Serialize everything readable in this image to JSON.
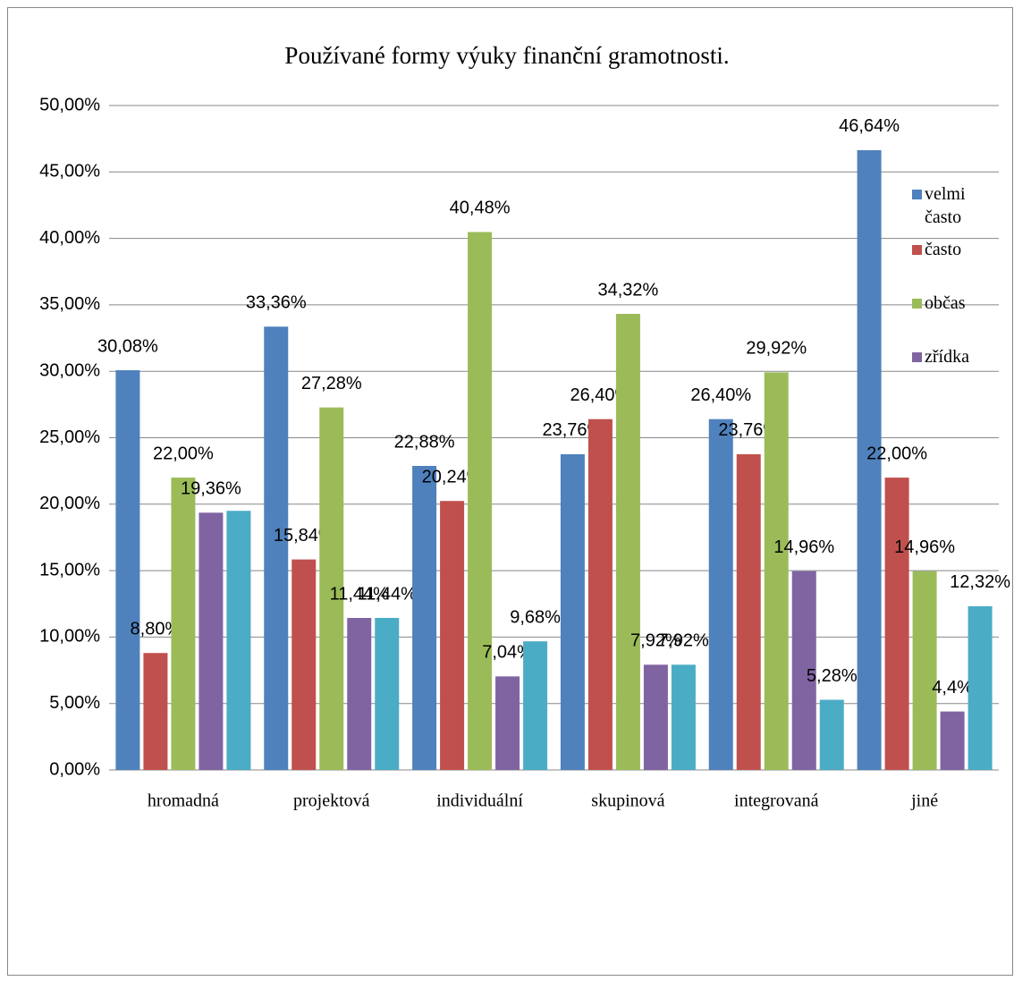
{
  "chart_data": {
    "type": "bar",
    "title": "Používané formy výuky finanční gramotnosti.",
    "categories": [
      "hromadná",
      "projektová",
      "individuální",
      "skupinová",
      "integrovaná",
      "jiné"
    ],
    "series": [
      {
        "name": "velmi často",
        "color": "#4f81bd",
        "values": [
          30.08,
          33.36,
          22.88,
          23.76,
          26.4,
          46.64
        ],
        "value_labels": [
          "30,08%",
          "33,36%",
          "22,88%",
          "23,76%",
          "26,40%",
          "46,64%"
        ]
      },
      {
        "name": "často",
        "color": "#c0504d",
        "values": [
          8.8,
          15.84,
          20.24,
          26.4,
          23.76,
          22.0
        ],
        "value_labels": [
          "8,80%",
          "15,84%",
          "20,24%",
          "26,40%",
          "23,76%",
          "22,00%"
        ]
      },
      {
        "name": "občas",
        "color": "#9bbb59",
        "values": [
          22.0,
          27.28,
          40.48,
          34.32,
          29.92,
          14.96
        ],
        "value_labels": [
          "22,00%",
          "27,28%",
          "40,48%",
          "34,32%",
          "29,92%",
          "14,96%"
        ]
      },
      {
        "name": "zřídka",
        "color": "#8064a2",
        "values": [
          19.36,
          11.44,
          7.04,
          7.92,
          14.96,
          4.4
        ],
        "value_labels": [
          "19,36%",
          "11,44%",
          "7,04%",
          "7,92%",
          "14,96%",
          "4,4%"
        ]
      },
      {
        "name": null,
        "color": "#4bacc6",
        "values": [
          19.5,
          11.44,
          9.68,
          7.92,
          5.28,
          12.32
        ],
        "value_labels": [
          null,
          "11,44%",
          "9,68%",
          "7,92%",
          "5,28%",
          "12,32%"
        ]
      }
    ],
    "ylim": [
      0,
      50
    ],
    "yticks": [
      {
        "value": 0,
        "label": "0,00%"
      },
      {
        "value": 5,
        "label": "5,00%"
      },
      {
        "value": 10,
        "label": "10,00%"
      },
      {
        "value": 15,
        "label": "15,00%"
      },
      {
        "value": 20,
        "label": "20,00%"
      },
      {
        "value": 25,
        "label": "25,00%"
      },
      {
        "value": 30,
        "label": "30,00%"
      },
      {
        "value": 35,
        "label": "35,00%"
      },
      {
        "value": 40,
        "label": "40,00%"
      },
      {
        "value": 45,
        "label": "45,00%"
      },
      {
        "value": 50,
        "label": "50,00%"
      }
    ],
    "grid": true,
    "legend": "right"
  }
}
